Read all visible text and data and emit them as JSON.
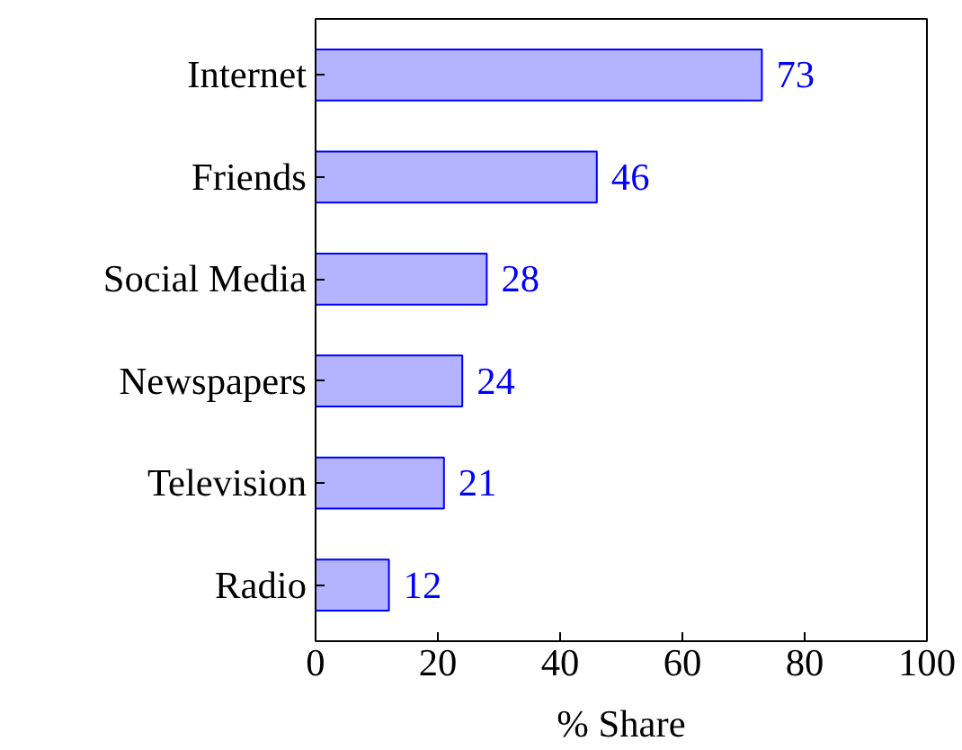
{
  "chart_data": {
    "type": "bar",
    "orientation": "horizontal",
    "xlabel": "% Share",
    "categories": [
      "Internet",
      "Friends",
      "Social Media",
      "Newspapers",
      "Television",
      "Radio"
    ],
    "values": [
      73,
      46,
      28,
      24,
      21,
      12
    ],
    "color": "#b3b3ff",
    "xlim": [
      0,
      100
    ],
    "xticks": [
      0,
      20,
      40,
      60,
      80,
      100
    ],
    "data_labels": true
  }
}
